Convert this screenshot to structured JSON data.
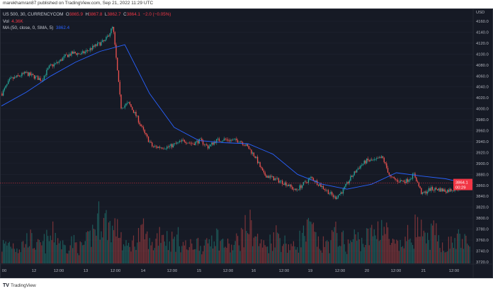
{
  "header": {
    "published": "marekhamran87 published on TradingView.com, Sep 21, 2022 11:29 UTC"
  },
  "legend": {
    "symbol": "US 500, 30, CURRENCYCOM",
    "open_label": "O",
    "open": "3865.9",
    "high_label": "H",
    "high": "3867.8",
    "low_label": "L",
    "low": "3862.7",
    "close_label": "C",
    "close": "3864.1",
    "change": "−2.0 (−0.05%)",
    "vol_label": "Vol",
    "vol": "4.36K",
    "ma_label": "MA (50, close, 0, SMA, 5)",
    "ma": "3862.4"
  },
  "price_axis": {
    "currency": "USD",
    "ticks": [
      "4160.0",
      "4140.0",
      "4120.0",
      "4100.0",
      "4080.0",
      "4060.0",
      "4040.0",
      "4020.0",
      "4000.0",
      "3980.0",
      "3960.0",
      "3940.0",
      "3920.0",
      "3900.0",
      "3880.0",
      "3860.0",
      "3840.0",
      "3820.0",
      "3800.0",
      "3780.0",
      "3760.0",
      "3740.0",
      "3720.0"
    ],
    "last_price": "3864.1",
    "countdown": "00:29"
  },
  "time_axis": {
    "ticks": [
      "00",
      "12",
      "12:00",
      "13",
      "12:00",
      "14",
      "12:00",
      "15",
      "12:00",
      "16",
      "12:00",
      "19",
      "12:00",
      "20",
      "12:00",
      "21",
      "12:00"
    ]
  },
  "footer": {
    "logo_text": "TradingView",
    "logo_mark": "17"
  },
  "colors": {
    "up": "#26a69a",
    "down": "#ef5350",
    "ma": "#2962ff",
    "last_price": "#f23645",
    "background": "#161a25"
  },
  "chart_data": {
    "type": "candlestick",
    "ylim": [
      3710,
      4165
    ],
    "close_path": [
      4028,
      4053,
      4059,
      4065,
      4059,
      4053,
      4077,
      4084,
      4096,
      4102,
      4100,
      4108,
      4117,
      4124,
      4150,
      4003,
      4010,
      3985,
      3954,
      3930,
      3930,
      3930,
      3936,
      3942,
      3936,
      3942,
      3930,
      3942,
      3944,
      3942,
      3942,
      3930,
      3911,
      3880,
      3874,
      3868,
      3862,
      3850,
      3862,
      3874,
      3862,
      3850,
      3837,
      3850,
      3874,
      3893,
      3905,
      3905,
      3911,
      3874,
      3868,
      3868,
      3880,
      3843,
      3853,
      3853,
      3850,
      3853,
      3858,
      3864
    ],
    "ma_path": [
      4005,
      4030,
      4060,
      4085,
      4105,
      4117,
      4028,
      3966,
      3942,
      3938,
      3936,
      3917,
      3880,
      3862,
      3853,
      3862,
      3883,
      3877,
      3872,
      3862
    ],
    "volume_profile": [
      3,
      4,
      3,
      5,
      3,
      4,
      6,
      3,
      4,
      3,
      5,
      9,
      8,
      5,
      3,
      4,
      6,
      3,
      7,
      4,
      5,
      3,
      4,
      3,
      6,
      4,
      3,
      5,
      8,
      4,
      3,
      6,
      4,
      3,
      5,
      7,
      3,
      4,
      6,
      3,
      5,
      4,
      6,
      8,
      4,
      3,
      5,
      7,
      4,
      6,
      3,
      4,
      5,
      3
    ]
  }
}
